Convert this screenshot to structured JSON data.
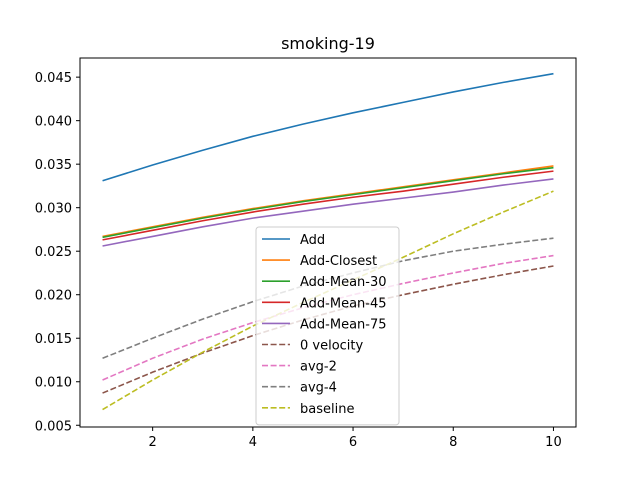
{
  "chart_data": {
    "type": "line",
    "title": "smoking-19",
    "xlabel": "",
    "ylabel": "",
    "xlim": [
      0.55,
      10.45
    ],
    "ylim": [
      0.0048,
      0.0472
    ],
    "xticks": [
      2,
      4,
      6,
      8,
      10
    ],
    "yticks": [
      0.005,
      0.01,
      0.015,
      0.02,
      0.025,
      0.03,
      0.035,
      0.04,
      0.045
    ],
    "xtick_labels": [
      "2",
      "4",
      "6",
      "8",
      "10"
    ],
    "ytick_labels": [
      "0.005",
      "0.010",
      "0.015",
      "0.020",
      "0.025",
      "0.030",
      "0.035",
      "0.040",
      "0.045"
    ],
    "grid": false,
    "legend_position": "lower-center",
    "x": [
      1,
      2,
      3,
      4,
      5,
      6,
      7,
      8,
      9,
      10
    ],
    "series": [
      {
        "name": "Add",
        "color": "#1f77b4",
        "dash": "solid",
        "values": [
          0.0331,
          0.0349,
          0.0366,
          0.0382,
          0.0396,
          0.0409,
          0.0421,
          0.0433,
          0.0444,
          0.0454
        ]
      },
      {
        "name": "Add-Closest",
        "color": "#ff7f0e",
        "dash": "solid",
        "values": [
          0.0267,
          0.0278,
          0.0289,
          0.0299,
          0.0308,
          0.0316,
          0.0324,
          0.0332,
          0.034,
          0.0348
        ]
      },
      {
        "name": "Add-Mean-30",
        "color": "#2ca02c",
        "dash": "solid",
        "values": [
          0.0266,
          0.0277,
          0.0288,
          0.0298,
          0.0307,
          0.0315,
          0.0323,
          0.0331,
          0.0339,
          0.0346
        ]
      },
      {
        "name": "Add-Mean-45",
        "color": "#d62728",
        "dash": "solid",
        "values": [
          0.0263,
          0.0274,
          0.0285,
          0.0295,
          0.0304,
          0.0312,
          0.0319,
          0.0327,
          0.0335,
          0.0342
        ]
      },
      {
        "name": "Add-Mean-75",
        "color": "#9467bd",
        "dash": "solid",
        "values": [
          0.0256,
          0.0267,
          0.0278,
          0.0288,
          0.0296,
          0.0304,
          0.0311,
          0.0318,
          0.0326,
          0.0333
        ]
      },
      {
        "name": "0 velocity",
        "color": "#8c564b",
        "dash": "dashed",
        "values": [
          0.0087,
          0.0111,
          0.0133,
          0.0153,
          0.0171,
          0.0187,
          0.02,
          0.0212,
          0.0223,
          0.0233
        ]
      },
      {
        "name": "avg-2",
        "color": "#e377c2",
        "dash": "dashed",
        "values": [
          0.0102,
          0.0127,
          0.0149,
          0.0168,
          0.0185,
          0.02,
          0.0213,
          0.0225,
          0.0236,
          0.0245
        ]
      },
      {
        "name": "avg-4",
        "color": "#7f7f7f",
        "dash": "dashed",
        "values": [
          0.0127,
          0.015,
          0.0172,
          0.0192,
          0.021,
          0.0225,
          0.0239,
          0.025,
          0.0258,
          0.0265
        ]
      },
      {
        "name": "baseline",
        "color": "#bcbd22",
        "dash": "dashed",
        "values": [
          0.0068,
          0.0102,
          0.0134,
          0.0164,
          0.0191,
          0.0217,
          0.0243,
          0.027,
          0.0295,
          0.0319
        ]
      }
    ]
  }
}
